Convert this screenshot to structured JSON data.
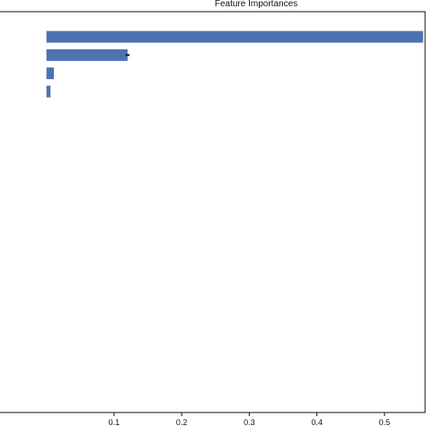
{
  "chart_data": {
    "type": "bar",
    "orientation": "horizontal",
    "title": "Feature Importances",
    "categories": [
      "",
      "",
      "",
      ""
    ],
    "values": [
      0.557,
      0.12,
      0.011,
      0.006
    ],
    "errors": [
      0.0,
      0.003,
      0.0,
      0.0
    ],
    "xlabel": "",
    "ylabel": "",
    "xlim": [
      -0.07,
      0.56
    ],
    "xticks": [
      0.1,
      0.2,
      0.3,
      0.4,
      0.5
    ],
    "xtick_labels": [
      "0.1",
      "0.2",
      "0.3",
      "0.4",
      "0.5"
    ],
    "grid": false,
    "bar_color": "#4c72b0",
    "error_color": "#111111"
  }
}
